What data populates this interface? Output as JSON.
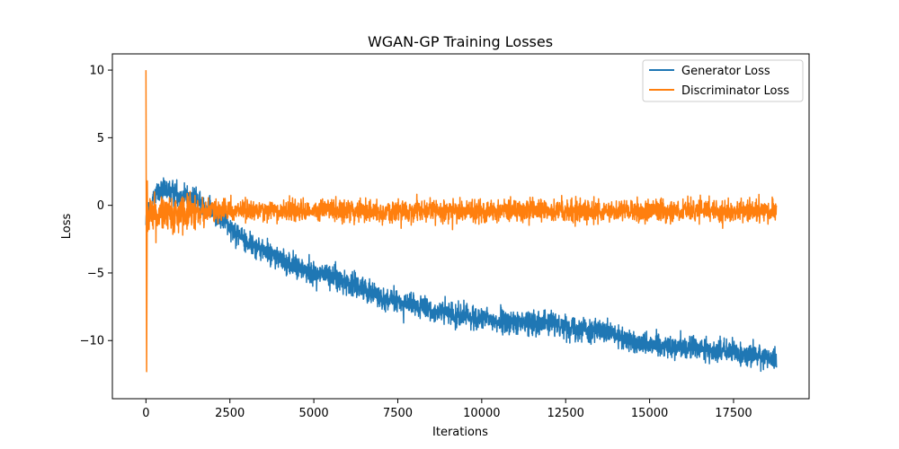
{
  "chart_data": {
    "type": "line",
    "title": "WGAN-GP Training Losses",
    "xlabel": "Iterations",
    "ylabel": "Loss",
    "xlim": [
      -1000,
      19750
    ],
    "ylim": [
      -14.3,
      11.2
    ],
    "xticks": [
      0,
      2500,
      5000,
      7500,
      10000,
      12500,
      15000,
      17500
    ],
    "xtick_labels": [
      "0",
      "2500",
      "5000",
      "7500",
      "10000",
      "12500",
      "15000",
      "17500"
    ],
    "yticks": [
      10,
      5,
      0,
      -5,
      -10
    ],
    "ytick_labels": [
      "10",
      "5",
      "0",
      "−5",
      "−10"
    ],
    "grid": false,
    "legend_position": "upper right",
    "n_points": 18780,
    "series": [
      {
        "name": "Generator Loss",
        "color": "#1f77b4",
        "x": [
          0,
          300,
          800,
          1500,
          2000,
          2500,
          3000,
          3500,
          4000,
          4500,
          5000,
          5500,
          6000,
          6500,
          7000,
          7500,
          8000,
          8500,
          9000,
          9500,
          10000,
          10500,
          11000,
          11500,
          12000,
          12500,
          13000,
          13500,
          14000,
          14500,
          15000,
          15500,
          16000,
          16500,
          17000,
          17500,
          18000,
          18500,
          18780
        ],
        "values": [
          -1.0,
          1.0,
          1.0,
          0.4,
          -0.5,
          -1.5,
          -2.7,
          -3.3,
          -4.0,
          -4.6,
          -5.0,
          -5.2,
          -5.7,
          -6.1,
          -6.8,
          -7.2,
          -7.4,
          -7.8,
          -8.0,
          -8.2,
          -8.4,
          -8.6,
          -8.7,
          -8.6,
          -8.7,
          -8.9,
          -9.1,
          -9.3,
          -9.7,
          -10.1,
          -10.2,
          -10.4,
          -10.5,
          -10.6,
          -10.8,
          -10.9,
          -11.1,
          -11.2,
          -11.4
        ],
        "noise_amplitude": 0.8
      },
      {
        "name": "Discriminator Loss",
        "color": "#ff7f0e",
        "x": [
          0,
          500,
          1000,
          2000,
          3000,
          4000,
          5000,
          6000,
          7000,
          8000,
          9000,
          10000,
          11000,
          12000,
          13000,
          14000,
          15000,
          16000,
          17000,
          18000,
          18780
        ],
        "values": [
          -0.8,
          -0.6,
          -0.5,
          -0.4,
          -0.4,
          -0.4,
          -0.4,
          -0.4,
          -0.4,
          -0.4,
          -0.4,
          -0.4,
          -0.4,
          -0.4,
          -0.4,
          -0.4,
          -0.4,
          -0.4,
          -0.4,
          -0.4,
          -0.4
        ],
        "noise_amplitude": 0.75,
        "initial_spikes": [
          [
            0,
            10.0
          ],
          [
            20,
            -12.3
          ],
          [
            40,
            1.8
          ]
        ]
      }
    ]
  }
}
